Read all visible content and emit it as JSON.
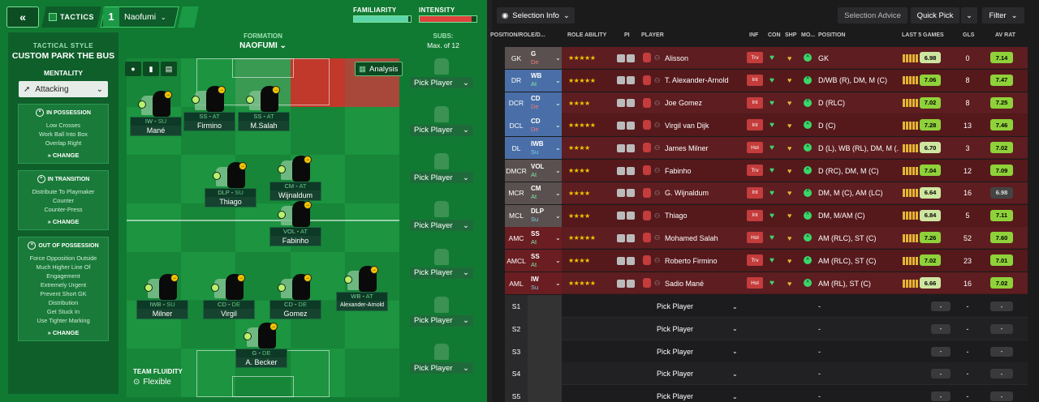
{
  "topbar": {
    "back_icon": "double-chevron-left-icon",
    "tactics_label": "TACTICS",
    "slot_number": "1",
    "slot_name": "Naofumi",
    "familiarity_label": "FAMILIARITY",
    "familiarity_value": 0.95,
    "intensity_label": "INTENSITY",
    "intensity_value": 0.92
  },
  "side": {
    "style_label": "TACTICAL STYLE",
    "style_value": "CUSTOM PARK THE BUS",
    "mentality_label": "MENTALITY",
    "mentality_value": "Attacking",
    "phases": [
      {
        "title": "IN POSSESSION",
        "items": [
          "Low Crosses",
          "Work Ball Into Box",
          "Overlap Right"
        ],
        "change": "CHANGE"
      },
      {
        "title": "IN TRANSITION",
        "items": [
          "Distribute To Playmaker",
          "Counter",
          "Counter-Press"
        ],
        "change": "CHANGE"
      },
      {
        "title": "OUT OF POSSESSION",
        "items": [
          "Force Opposition Outside",
          "Much Higher Line Of",
          "Engagement",
          "Extremely Urgent",
          "Prevent Short GK",
          "Distribution",
          "Get Stuck In",
          "Use Tighter Marking"
        ],
        "change": "CHANGE"
      }
    ]
  },
  "formation": {
    "label": "FORMATION",
    "name": "NAOFUMI"
  },
  "analysis_label": "Analysis",
  "players": [
    {
      "role": "IW",
      "duty": "SU",
      "name": "Mané"
    },
    {
      "role": "SS",
      "duty": "AT",
      "name": "Firmino"
    },
    {
      "role": "SS",
      "duty": "AT",
      "name": "M.Salah"
    },
    {
      "role": "DLP",
      "duty": "SU",
      "name": "Thiago"
    },
    {
      "role": "CM",
      "duty": "AT",
      "name": "Wijnaldum"
    },
    {
      "role": "VOL",
      "duty": "AT",
      "name": "Fabinho"
    },
    {
      "role": "IWB",
      "duty": "SU",
      "name": "Milner"
    },
    {
      "role": "CD",
      "duty": "DE",
      "name": "Virgil"
    },
    {
      "role": "CD",
      "duty": "DE",
      "name": "Gomez"
    },
    {
      "role": "WB",
      "duty": "AT",
      "name": "Alexander-Arnold"
    },
    {
      "role": "G",
      "duty": "DE",
      "name": "A. Becker"
    }
  ],
  "subs": {
    "label": "SUBS:",
    "max": "Max. of 12",
    "pick": "Pick Player"
  },
  "fluidity": {
    "label": "TEAM FLUIDITY",
    "value": "Flexible"
  },
  "right": {
    "selection_info": "Selection Info",
    "selection_advice": "Selection Advice",
    "quick_pick": "Quick Pick",
    "filter": "Filter",
    "headers": {
      "pos": "POSITION/ROLE/D...",
      "role_ability": "ROLE ABILITY",
      "pi": "PI",
      "player": "PLAYER",
      "inf": "INF",
      "con": "CON",
      "shp": "SHP",
      "mo": "MO...",
      "position": "POSITION",
      "last5": "LAST 5 GAMES",
      "gls": "GLS",
      "avrat": "AV RAT"
    },
    "rows": [
      {
        "pos": "GK",
        "role": "G",
        "duty": "De",
        "stars": "★★★★★",
        "num": "1",
        "name": "Alisson",
        "inf": "Trv",
        "inf_color": "#c43c3c",
        "con": "♥",
        "shp": "♥",
        "position": "GK",
        "last": "6.98",
        "gls": "0",
        "avr": "7.14"
      },
      {
        "pos": "DR",
        "role": "WB",
        "duty": "At",
        "stars": "★★★★★",
        "num": "66",
        "name": "T. Alexander-Arnold",
        "inf": "Int",
        "inf_color": "#c43c3c",
        "con": "♥",
        "shp": "♥",
        "position": "D/WB (R), DM, M (C)",
        "last": "7.06",
        "gls": "8",
        "avr": "7.47"
      },
      {
        "pos": "DCR",
        "role": "CD",
        "duty": "De",
        "stars": "★★★★",
        "num": "12",
        "name": "Joe Gomez",
        "inf": "Int",
        "inf_color": "#c43c3c",
        "con": "♥",
        "shp": "♥",
        "position": "D (RLC)",
        "last": "7.02",
        "gls": "8",
        "avr": "7.25"
      },
      {
        "pos": "DCL",
        "role": "CD",
        "duty": "De",
        "stars": "★★★★★",
        "num": "4",
        "name": "Virgil van Dijk",
        "inf": "Int",
        "inf_color": "#c43c3c",
        "con": "♥",
        "shp": "♥",
        "position": "D (C)",
        "last": "7.28",
        "gls": "13",
        "avr": "7.46"
      },
      {
        "pos": "DL",
        "role": "IWB",
        "duty": "Su",
        "stars": "★★★★",
        "num": "7",
        "name": "James Milner",
        "inf": "Hol",
        "inf_color": "#c43c3c",
        "con": "♥",
        "shp": "♥",
        "position": "D (L), WB (RL), DM, M (...",
        "last": "6.70",
        "gls": "3",
        "avr": "7.02"
      },
      {
        "pos": "DMCR",
        "role": "VOL",
        "duty": "At",
        "stars": "★★★★",
        "num": "3",
        "name": "Fabinho",
        "inf": "Trv",
        "inf_color": "#c43c3c",
        "con": "♥",
        "shp": "♥",
        "position": "D (RC), DM, M (C)",
        "last": "7.04",
        "gls": "12",
        "avr": "7.09"
      },
      {
        "pos": "MCR",
        "role": "CM",
        "duty": "At",
        "stars": "★★★★",
        "num": "5",
        "name": "G. Wijnaldum",
        "inf": "Int",
        "inf_color": "#c43c3c",
        "con": "♥",
        "shp": "♥",
        "position": "DM, M (C), AM (LC)",
        "last": "6.64",
        "gls": "16",
        "avr": "6.98"
      },
      {
        "pos": "MCL",
        "role": "DLP",
        "duty": "Su",
        "stars": "★★★★",
        "num": "6",
        "name": "Thiago",
        "inf": "Int",
        "inf_color": "#c43c3c",
        "con": "♥",
        "shp": "♥",
        "position": "DM, M/AM (C)",
        "last": "6.84",
        "gls": "5",
        "avr": "7.11"
      },
      {
        "pos": "AMC",
        "role": "SS",
        "duty": "At",
        "stars": "★★★★★",
        "num": "11",
        "name": "Mohamed Salah",
        "inf": "Hol",
        "inf_color": "#c43c3c",
        "con": "♥",
        "shp": "♥",
        "position": "AM (RLC), ST (C)",
        "last": "7.26",
        "gls": "52",
        "avr": "7.60"
      },
      {
        "pos": "AMCL",
        "role": "SS",
        "duty": "At",
        "stars": "★★★★",
        "num": "9",
        "name": "Roberto Firmino",
        "inf": "Trv",
        "inf_color": "#c43c3c",
        "con": "♥",
        "shp": "♥",
        "position": "AM (RLC), ST (C)",
        "last": "7.02",
        "gls": "23",
        "avr": "7.01"
      },
      {
        "pos": "AML",
        "role": "IW",
        "duty": "Su",
        "stars": "★★★★★",
        "num": "10",
        "name": "Sadio Mané",
        "inf": "Hol",
        "inf_color": "#c43c3c",
        "con": "♥",
        "shp": "♥",
        "position": "AM (RL), ST (C)",
        "last": "6.66",
        "gls": "16",
        "avr": "7.02"
      }
    ],
    "sub_rows": [
      {
        "pos": "S1",
        "name": "Pick Player",
        "position": "-",
        "last": "-",
        "gls": "-",
        "avr": "-"
      },
      {
        "pos": "S2",
        "name": "Pick Player",
        "position": "-",
        "last": "-",
        "gls": "-",
        "avr": "-"
      },
      {
        "pos": "S3",
        "name": "Pick Player",
        "position": "-",
        "last": "-",
        "gls": "-",
        "avr": "-"
      },
      {
        "pos": "S4",
        "name": "Pick Player",
        "position": "-",
        "last": "-",
        "gls": "-",
        "avr": "-"
      },
      {
        "pos": "S5",
        "name": "Pick Player",
        "position": "-",
        "last": "-",
        "gls": "-",
        "avr": "-"
      }
    ]
  },
  "colors": {
    "pitch": "#1a8a3c",
    "row_bg": "#5a1c1f",
    "accent": "#3bd66b"
  }
}
